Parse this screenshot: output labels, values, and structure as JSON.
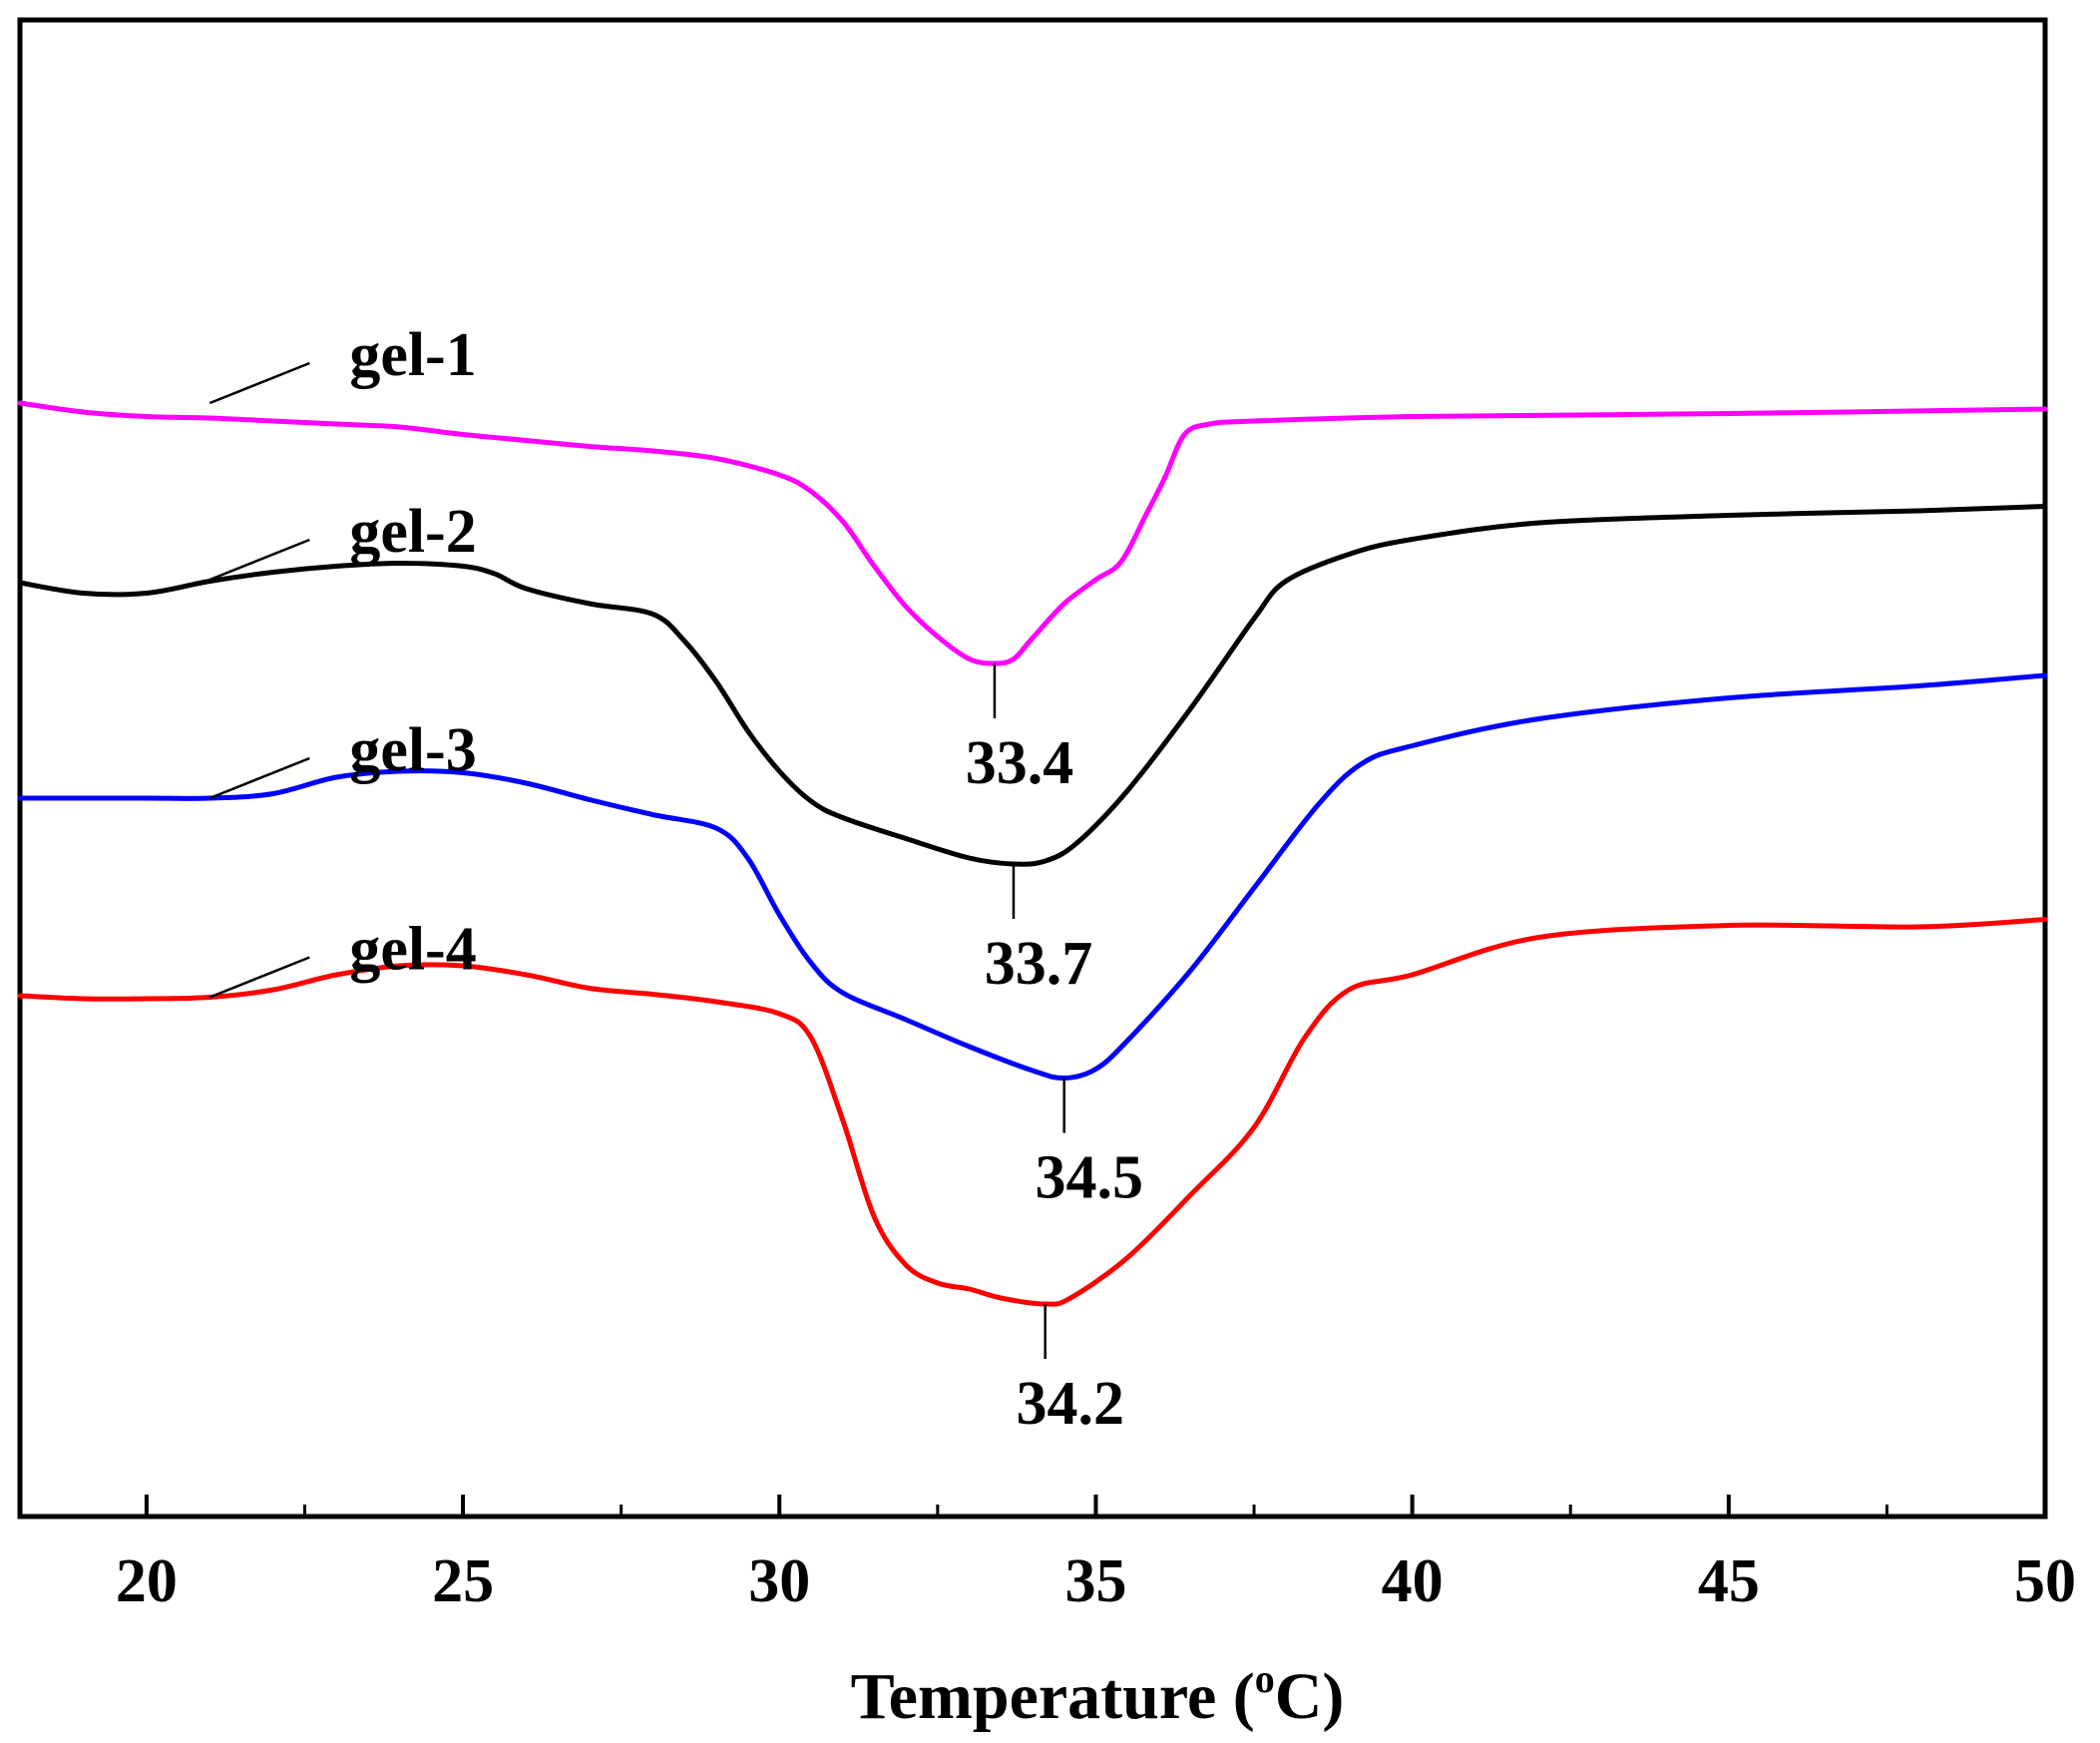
{
  "chart_data": {
    "type": "line",
    "title": "",
    "xlabel": "Temperature (°C)",
    "xlabel_main": "Temperature (",
    "xlabel_sup": "o",
    "xlabel_unit": "C)",
    "ylabel": "",
    "xlim": [
      18,
      50
    ],
    "ylim": [
      0,
      100
    ],
    "xticks": [
      20,
      25,
      30,
      35,
      40,
      45,
      50
    ],
    "xtick_labels": [
      "20",
      "25",
      "30",
      "35",
      "40",
      "45",
      "50"
    ],
    "x_minor_ticks": [
      22.5,
      27.5,
      32.5,
      37.5,
      42.5,
      47.5
    ],
    "grid": false,
    "legend": "inline labels",
    "series": [
      {
        "name": "gel-1",
        "color": "#ff00ff",
        "label_at": [
          21.0,
          74.4
        ],
        "peak": {
          "x": 33.4,
          "y": 57.0,
          "label": "33.4"
        },
        "points": [
          [
            18,
            74.4
          ],
          [
            19,
            73.8
          ],
          [
            20,
            73.5
          ],
          [
            21,
            73.4
          ],
          [
            22,
            73.2
          ],
          [
            23,
            73.0
          ],
          [
            24,
            72.8
          ],
          [
            25,
            72.3
          ],
          [
            26,
            71.9
          ],
          [
            27,
            71.5
          ],
          [
            28,
            71.2
          ],
          [
            29,
            70.7
          ],
          [
            30,
            69.6
          ],
          [
            30.5,
            68.5
          ],
          [
            31,
            66.5
          ],
          [
            31.5,
            63.5
          ],
          [
            32,
            60.8
          ],
          [
            32.5,
            58.8
          ],
          [
            33,
            57.3
          ],
          [
            33.4,
            57.0
          ],
          [
            33.7,
            57.3
          ],
          [
            34,
            58.7
          ],
          [
            34.5,
            61.0
          ],
          [
            35,
            62.6
          ],
          [
            35.4,
            63.8
          ],
          [
            35.8,
            67.0
          ],
          [
            36.1,
            69.5
          ],
          [
            36.4,
            72.3
          ],
          [
            36.8,
            73.0
          ],
          [
            37.5,
            73.2
          ],
          [
            40,
            73.5
          ],
          [
            45,
            73.7
          ],
          [
            50,
            74.0
          ]
        ]
      },
      {
        "name": "gel-2",
        "color": "#000000",
        "label_at": [
          21.0,
          62.6
        ],
        "peak": {
          "x": 33.7,
          "y": 43.6,
          "label": "33.7"
        },
        "points": [
          [
            18,
            62.4
          ],
          [
            19,
            61.7
          ],
          [
            20,
            61.7
          ],
          [
            21,
            62.5
          ],
          [
            22,
            63.1
          ],
          [
            23,
            63.5
          ],
          [
            24,
            63.7
          ],
          [
            25,
            63.5
          ],
          [
            25.5,
            63.0
          ],
          [
            26,
            62.0
          ],
          [
            27,
            61.0
          ],
          [
            28,
            60.3
          ],
          [
            28.5,
            58.5
          ],
          [
            29,
            55.8
          ],
          [
            29.5,
            52.5
          ],
          [
            30,
            49.8
          ],
          [
            30.5,
            47.8
          ],
          [
            31,
            46.7
          ],
          [
            32,
            45.3
          ],
          [
            33,
            44.0
          ],
          [
            33.7,
            43.6
          ],
          [
            34.2,
            43.8
          ],
          [
            34.7,
            45.0
          ],
          [
            35.5,
            48.5
          ],
          [
            36.5,
            54.0
          ],
          [
            37.5,
            60.0
          ],
          [
            38,
            62.5
          ],
          [
            39,
            64.3
          ],
          [
            40,
            65.3
          ],
          [
            42,
            66.4
          ],
          [
            45,
            66.9
          ],
          [
            48,
            67.2
          ],
          [
            50,
            67.5
          ]
        ]
      },
      {
        "name": "gel-3",
        "color": "#0000ff",
        "label_at": [
          21.0,
          48.0
        ],
        "peak": {
          "x": 34.5,
          "y": 29.3,
          "label": "34.5"
        },
        "points": [
          [
            18,
            48.0
          ],
          [
            19,
            48.0
          ],
          [
            20,
            48.0
          ],
          [
            21,
            48.0
          ],
          [
            22,
            48.3
          ],
          [
            23,
            49.4
          ],
          [
            24,
            49.8
          ],
          [
            25,
            49.7
          ],
          [
            26,
            49.0
          ],
          [
            27,
            47.9
          ],
          [
            28,
            46.9
          ],
          [
            29,
            46.0
          ],
          [
            29.5,
            44.0
          ],
          [
            30,
            40.2
          ],
          [
            30.5,
            37.0
          ],
          [
            31,
            35.0
          ],
          [
            32,
            33.2
          ],
          [
            33,
            31.4
          ],
          [
            34,
            29.8
          ],
          [
            34.5,
            29.3
          ],
          [
            35,
            29.9
          ],
          [
            35.5,
            31.8
          ],
          [
            36.5,
            36.5
          ],
          [
            37.5,
            42.0
          ],
          [
            38.5,
            47.5
          ],
          [
            39.2,
            50.3
          ],
          [
            40,
            51.5
          ],
          [
            42,
            53.3
          ],
          [
            45,
            54.7
          ],
          [
            48,
            55.5
          ],
          [
            50,
            56.2
          ]
        ]
      },
      {
        "name": "gel-4",
        "color": "#ff0000",
        "label_at": [
          21.0,
          34.7
        ],
        "peak": {
          "x": 34.2,
          "y": 14.2,
          "label": "34.2"
        },
        "points": [
          [
            18,
            34.8
          ],
          [
            19,
            34.6
          ],
          [
            20,
            34.6
          ],
          [
            21,
            34.7
          ],
          [
            22,
            35.2
          ],
          [
            23,
            36.2
          ],
          [
            24,
            36.8
          ],
          [
            25,
            36.8
          ],
          [
            26,
            36.2
          ],
          [
            27,
            35.3
          ],
          [
            28,
            34.9
          ],
          [
            29,
            34.4
          ],
          [
            30,
            33.6
          ],
          [
            30.5,
            32.0
          ],
          [
            31,
            26.5
          ],
          [
            31.5,
            20.0
          ],
          [
            32,
            16.8
          ],
          [
            32.5,
            15.6
          ],
          [
            33,
            15.2
          ],
          [
            33.5,
            14.6
          ],
          [
            34.2,
            14.2
          ],
          [
            34.6,
            14.6
          ],
          [
            35.5,
            17.3
          ],
          [
            36.5,
            21.5
          ],
          [
            37.5,
            26.0
          ],
          [
            38.3,
            32.0
          ],
          [
            39,
            35.2
          ],
          [
            40,
            36.2
          ],
          [
            42,
            38.7
          ],
          [
            45,
            39.5
          ],
          [
            48,
            39.4
          ],
          [
            50,
            39.9
          ]
        ]
      }
    ]
  }
}
